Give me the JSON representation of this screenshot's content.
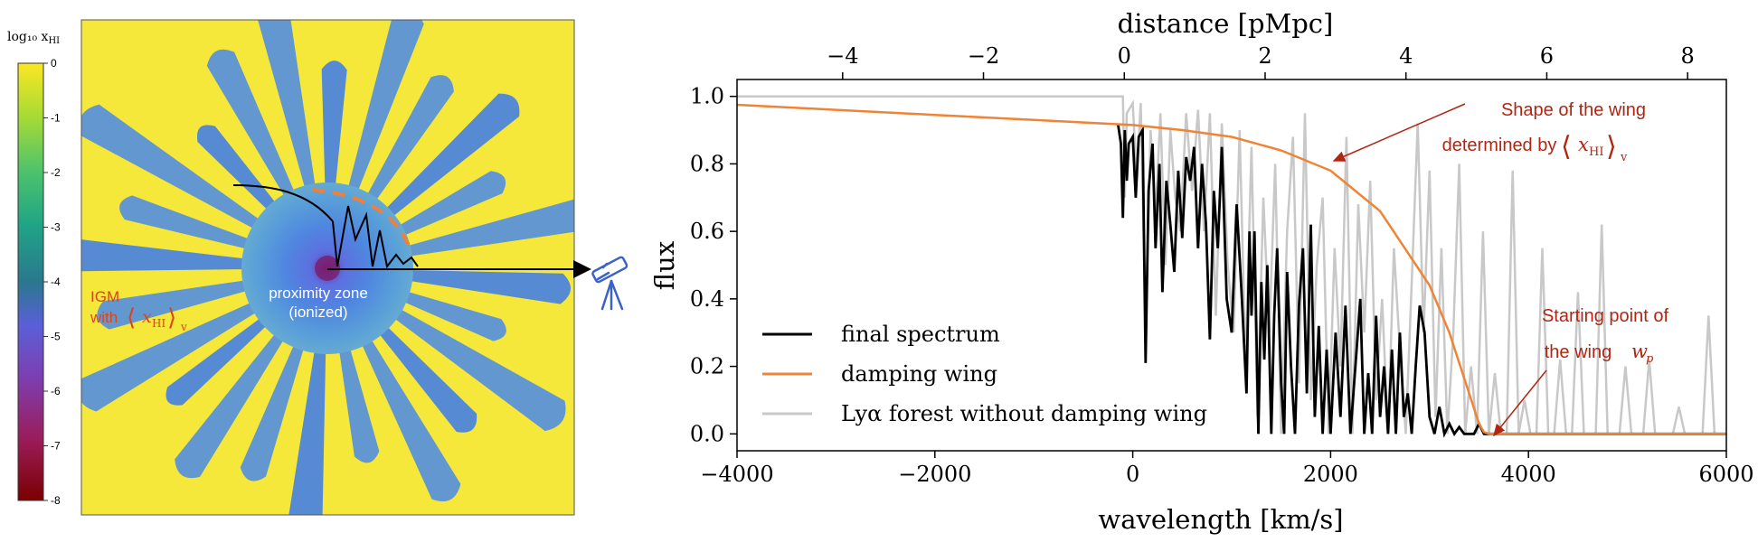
{
  "colorbar": {
    "title": "log₁₀ x",
    "title_sub": "HI",
    "ticks": [
      "0",
      "-1",
      "-2",
      "-3",
      "-4",
      "-5",
      "-6",
      "-7",
      "-8"
    ]
  },
  "map": {
    "igm_label": "IGM",
    "igm_with": "with",
    "bracket_open": "⟨",
    "bracket_x": "x",
    "bracket_sub": "HI",
    "bracket_close": "⟩",
    "bracket_v": "v",
    "zone_line1": "proximity zone",
    "zone_line2": "(ionized)",
    "telescope": "telescope-icon"
  },
  "colors": {
    "final": "#000000",
    "damping": "#f08436",
    "forest": "#c8c8c8",
    "annotation": "#b22512",
    "dashed": "#ef7f3b"
  },
  "chart_data": {
    "type": "line",
    "xlabel": "wavelength [km/s]",
    "ylabel": "flux",
    "top_xlabel": "distance [pMpc]",
    "xlim": [
      -4000,
      6000
    ],
    "ylim": [
      -0.05,
      1.05
    ],
    "xticks": [
      -4000,
      -2000,
      0,
      2000,
      4000,
      6000
    ],
    "xtick_labels": [
      "−4000",
      "−2000",
      "0",
      "2000",
      "4000",
      "6000"
    ],
    "yticks": [
      0.0,
      0.2,
      0.4,
      0.6,
      0.8,
      1.0
    ],
    "ytick_labels": [
      "0.0",
      "0.2",
      "0.4",
      "0.6",
      "0.8",
      "1.0"
    ],
    "top_xlim": [
      -5.5,
      8.55
    ],
    "top_xticks": [
      -4,
      -2,
      0,
      2,
      4,
      6,
      8
    ],
    "top_xtick_labels": [
      "−4",
      "−2",
      "0",
      "2",
      "4",
      "6",
      "8"
    ],
    "series": [
      {
        "name": "final spectrum",
        "color": "#000000",
        "x": [
          -150,
          -120,
          -100,
          -80,
          -60,
          -40,
          0,
          30,
          60,
          100,
          130,
          160,
          200,
          230,
          270,
          300,
          340,
          380,
          420,
          460,
          500,
          540,
          580,
          620,
          660,
          700,
          740,
          780,
          820,
          860,
          900,
          950,
          1000,
          1050,
          1100,
          1150,
          1180,
          1200,
          1230,
          1270,
          1300,
          1330,
          1360,
          1400,
          1430,
          1460,
          1500,
          1530,
          1560,
          1600,
          1640,
          1680,
          1720,
          1760,
          1800,
          1840,
          1880,
          1920,
          1960,
          2000,
          2050,
          2100,
          2150,
          2200,
          2250,
          2300,
          2340,
          2380,
          2420,
          2460,
          2500,
          2540,
          2580,
          2620,
          2660,
          2700,
          2740,
          2780,
          2820,
          2860,
          2900,
          2950,
          3000,
          3050,
          3100,
          3150,
          3200,
          3250,
          3300,
          3350,
          3400,
          3450,
          3500,
          3550,
          3600,
          4000,
          6000
        ],
        "y": [
          0.92,
          0.86,
          0.64,
          0.9,
          0.75,
          0.86,
          0.88,
          0.7,
          0.88,
          0.9,
          0.21,
          0.72,
          0.86,
          0.55,
          0.8,
          0.42,
          0.75,
          0.62,
          0.48,
          0.78,
          0.58,
          0.82,
          0.75,
          0.85,
          0.55,
          0.8,
          0.62,
          0.28,
          0.72,
          0.55,
          0.85,
          0.4,
          0.3,
          0.68,
          0.42,
          0.12,
          0.6,
          0.35,
          0.6,
          0.0,
          0.45,
          0.22,
          0.5,
          0.0,
          0.35,
          0.55,
          0.15,
          0.0,
          0.48,
          0.2,
          0.0,
          0.38,
          0.55,
          0.12,
          0.62,
          0.05,
          0.32,
          0.0,
          0.25,
          0.0,
          0.3,
          0.05,
          0.38,
          0.0,
          0.2,
          0.4,
          0.0,
          0.18,
          0.0,
          0.35,
          0.05,
          0.2,
          0.0,
          0.25,
          0.0,
          0.3,
          0.05,
          0.12,
          0.0,
          0.2,
          0.38,
          0.3,
          0.05,
          0.0,
          0.08,
          0.0,
          0.03,
          0.0,
          0.02,
          0.0,
          0.0,
          0.0,
          0.03,
          0.0,
          0.0,
          0.0,
          0.0
        ]
      },
      {
        "name": "damping wing",
        "color": "#f08436",
        "x": [
          -4000,
          -3000,
          -2000,
          -1000,
          0,
          500,
          1000,
          1500,
          2000,
          2500,
          3000,
          3200,
          3400,
          3500,
          3550,
          3600,
          4000,
          6000
        ],
        "y": [
          0.975,
          0.96,
          0.945,
          0.93,
          0.915,
          0.9,
          0.88,
          0.84,
          0.78,
          0.66,
          0.44,
          0.3,
          0.12,
          0.03,
          0.005,
          0.0,
          0.0,
          0.0
        ]
      },
      {
        "name": "Lyα forest without damping wing",
        "color": "#c8c8c8",
        "x": [
          -4000,
          -100,
          -80,
          -60,
          0,
          40,
          80,
          130,
          180,
          230,
          280,
          330,
          380,
          430,
          480,
          540,
          600,
          660,
          720,
          780,
          840,
          900,
          960,
          1020,
          1080,
          1140,
          1200,
          1260,
          1320,
          1380,
          1440,
          1500,
          1560,
          1620,
          1680,
          1740,
          1800,
          1860,
          1920,
          1980,
          2040,
          2100,
          2160,
          2220,
          2280,
          2340,
          2400,
          2460,
          2520,
          2580,
          2640,
          2700,
          2760,
          2820,
          2880,
          2940,
          3000,
          3060,
          3120,
          3180,
          3240,
          3300,
          3360,
          3420,
          3480,
          3540,
          3600,
          3660,
          3720,
          3780,
          3840,
          3900,
          3960,
          4020,
          4080,
          4140,
          4200,
          4260,
          4320,
          4380,
          4440,
          4500,
          4560,
          4620,
          4680,
          4740,
          4800,
          4860,
          4920,
          4980,
          5040,
          5100,
          5160,
          5220,
          5280,
          5340,
          5400,
          5460,
          5520,
          5580,
          5640,
          5700,
          5760,
          5820,
          5880,
          5940,
          6000
        ],
        "y": [
          1.0,
          1.0,
          0.7,
          0.95,
          0.98,
          0.75,
          0.98,
          0.3,
          0.9,
          0.65,
          0.95,
          0.5,
          0.9,
          0.7,
          0.6,
          0.95,
          0.72,
          0.96,
          0.6,
          0.95,
          0.35,
          0.92,
          0.5,
          0.3,
          0.9,
          0.2,
          0.85,
          0.05,
          0.7,
          0.3,
          0.8,
          0.0,
          0.6,
          0.88,
          0.15,
          0.95,
          0.1,
          0.5,
          0.7,
          0.0,
          0.55,
          0.2,
          0.88,
          0.0,
          0.68,
          0.3,
          0.75,
          0.1,
          0.4,
          0.0,
          0.55,
          0.25,
          0.0,
          0.45,
          0.92,
          0.3,
          0.78,
          0.05,
          0.55,
          0.0,
          0.3,
          0.8,
          0.0,
          0.2,
          0.0,
          0.6,
          0.0,
          0.18,
          0.0,
          0.0,
          0.78,
          0.0,
          0.1,
          0.0,
          0.0,
          0.55,
          0.0,
          0.0,
          0.22,
          0.0,
          0.0,
          0.42,
          0.0,
          0.0,
          0.0,
          0.62,
          0.0,
          0.0,
          0.0,
          0.2,
          0.0,
          0.0,
          0.0,
          0.22,
          0.0,
          0.0,
          0.0,
          0.0,
          0.08,
          0.0,
          0.0,
          0.0,
          0.0,
          0.35,
          0.0,
          0.0,
          0.0
        ]
      }
    ],
    "legend": {
      "position": "lower-left",
      "entries": [
        "final spectrum",
        "damping wing",
        "Lyα forest without damping wing"
      ]
    },
    "annotations": [
      {
        "id": "shape",
        "lines": [
          "Shape of the wing",
          "determined by"
        ],
        "tail_sub": "HI",
        "tail_v": "v",
        "arrow_to": [
          2000,
          0.8
        ]
      },
      {
        "id": "start",
        "lines": [
          "Starting point of",
          "the wing"
        ],
        "tail_var": "w",
        "tail_sub": "p",
        "arrow_to": [
          3550,
          0.0
        ]
      }
    ]
  }
}
